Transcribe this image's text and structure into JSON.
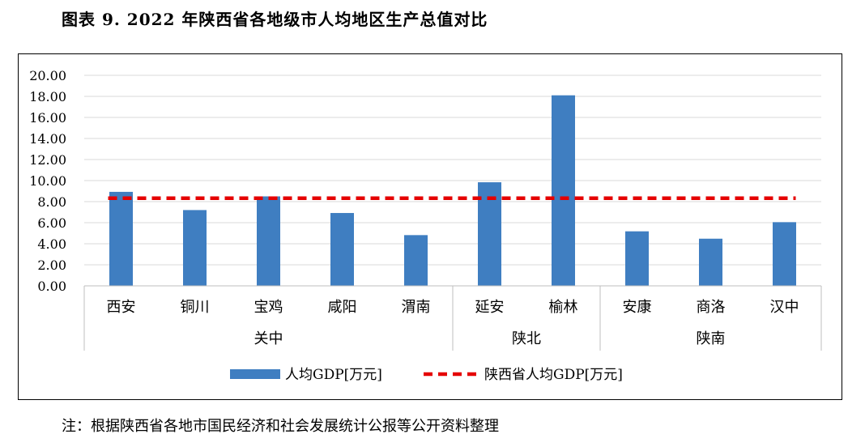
{
  "title": "图表 9. 2022 年陕西省各地级市人均地区生产总值对比",
  "note": "注：根据陕西省各地市国民经济和社会发展统计公报等公开资料整理",
  "chart_data": {
    "type": "bar",
    "categories": [
      "西安",
      "铜川",
      "宝鸡",
      "咸阳",
      "渭南",
      "延安",
      "榆林",
      "安康",
      "商洛",
      "汉中"
    ],
    "groups": [
      {
        "label": "关中",
        "count": 5
      },
      {
        "label": "陕北",
        "count": 2
      },
      {
        "label": "陕南",
        "count": 3
      }
    ],
    "series": [
      {
        "name": "人均GDP[万元]",
        "type": "bar",
        "color": "#3F7EC1",
        "values": [
          8.93,
          7.2,
          8.5,
          6.92,
          4.82,
          9.84,
          18.1,
          5.18,
          4.48,
          6.05
        ]
      },
      {
        "name": "陕西省人均GDP[万元]",
        "type": "line",
        "style": "dashed",
        "color": "#E50000",
        "values": [
          8.33,
          8.33,
          8.33,
          8.33,
          8.33,
          8.33,
          8.33,
          8.33,
          8.33,
          8.33
        ]
      }
    ],
    "yticks": [
      "0.00",
      "2.00",
      "4.00",
      "6.00",
      "8.00",
      "10.00",
      "12.00",
      "14.00",
      "16.00",
      "18.00",
      "20.00"
    ],
    "ylim": [
      0,
      20
    ],
    "grid": true,
    "legend_position": "bottom"
  }
}
